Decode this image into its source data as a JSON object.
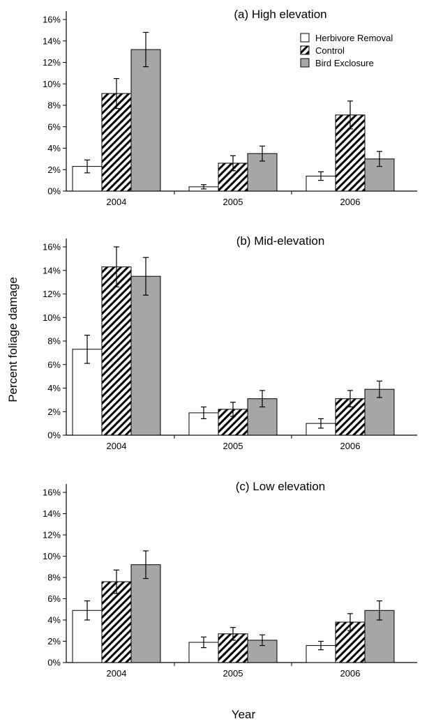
{
  "figure": {
    "ylabel": "Percent foliage damage",
    "xlabel": "Year"
  },
  "colors": {
    "herbivore_removal": "#ffffff",
    "control_stripe": "#000000",
    "bird_exclosure": "#a6a6a6",
    "axis": "#000000"
  },
  "legend": {
    "items": [
      {
        "label": "Herbivore Removal",
        "pattern": "white"
      },
      {
        "label": "Control",
        "pattern": "hatch"
      },
      {
        "label": "Bird Exclosure",
        "pattern": "gray"
      }
    ]
  },
  "chart_data": [
    {
      "type": "bar",
      "title": "(a) High elevation",
      "categories": [
        "2004",
        "2005",
        "2006"
      ],
      "ylim": [
        0,
        16
      ],
      "yticks": [
        "0%",
        "2%",
        "4%",
        "6%",
        "8%",
        "10%",
        "12%",
        "14%",
        "16%"
      ],
      "legend_position": "top-right",
      "series": [
        {
          "name": "Herbivore Removal",
          "values": [
            2.3,
            0.4,
            1.4
          ],
          "errors": [
            0.6,
            0.2,
            0.4
          ]
        },
        {
          "name": "Control",
          "values": [
            9.1,
            2.6,
            7.1
          ],
          "errors": [
            1.4,
            0.7,
            1.3
          ]
        },
        {
          "name": "Bird Exclosure",
          "values": [
            13.2,
            3.5,
            3.0
          ],
          "errors": [
            1.6,
            0.7,
            0.7
          ]
        }
      ]
    },
    {
      "type": "bar",
      "title": "(b) Mid-elevation",
      "categories": [
        "2004",
        "2005",
        "2006"
      ],
      "ylim": [
        0,
        16
      ],
      "yticks": [
        "0%",
        "2%",
        "4%",
        "6%",
        "8%",
        "10%",
        "12%",
        "14%",
        "16%"
      ],
      "series": [
        {
          "name": "Herbivore Removal",
          "values": [
            7.3,
            1.9,
            1.0
          ],
          "errors": [
            1.2,
            0.5,
            0.4
          ]
        },
        {
          "name": "Control",
          "values": [
            14.3,
            2.2,
            3.1
          ],
          "errors": [
            1.7,
            0.6,
            0.7
          ]
        },
        {
          "name": "Bird Exclosure",
          "values": [
            13.5,
            3.1,
            3.9
          ],
          "errors": [
            1.6,
            0.7,
            0.7
          ]
        }
      ]
    },
    {
      "type": "bar",
      "title": "(c) Low elevation",
      "categories": [
        "2004",
        "2005",
        "2006"
      ],
      "ylim": [
        0,
        16
      ],
      "yticks": [
        "0%",
        "2%",
        "4%",
        "6%",
        "8%",
        "10%",
        "12%",
        "14%",
        "16%"
      ],
      "series": [
        {
          "name": "Herbivore Removal",
          "values": [
            4.9,
            1.9,
            1.6
          ],
          "errors": [
            0.9,
            0.5,
            0.4
          ]
        },
        {
          "name": "Control",
          "values": [
            7.6,
            2.7,
            3.8
          ],
          "errors": [
            1.1,
            0.6,
            0.8
          ]
        },
        {
          "name": "Bird Exclosure",
          "values": [
            9.2,
            2.1,
            4.9
          ],
          "errors": [
            1.3,
            0.5,
            0.9
          ]
        }
      ]
    }
  ]
}
